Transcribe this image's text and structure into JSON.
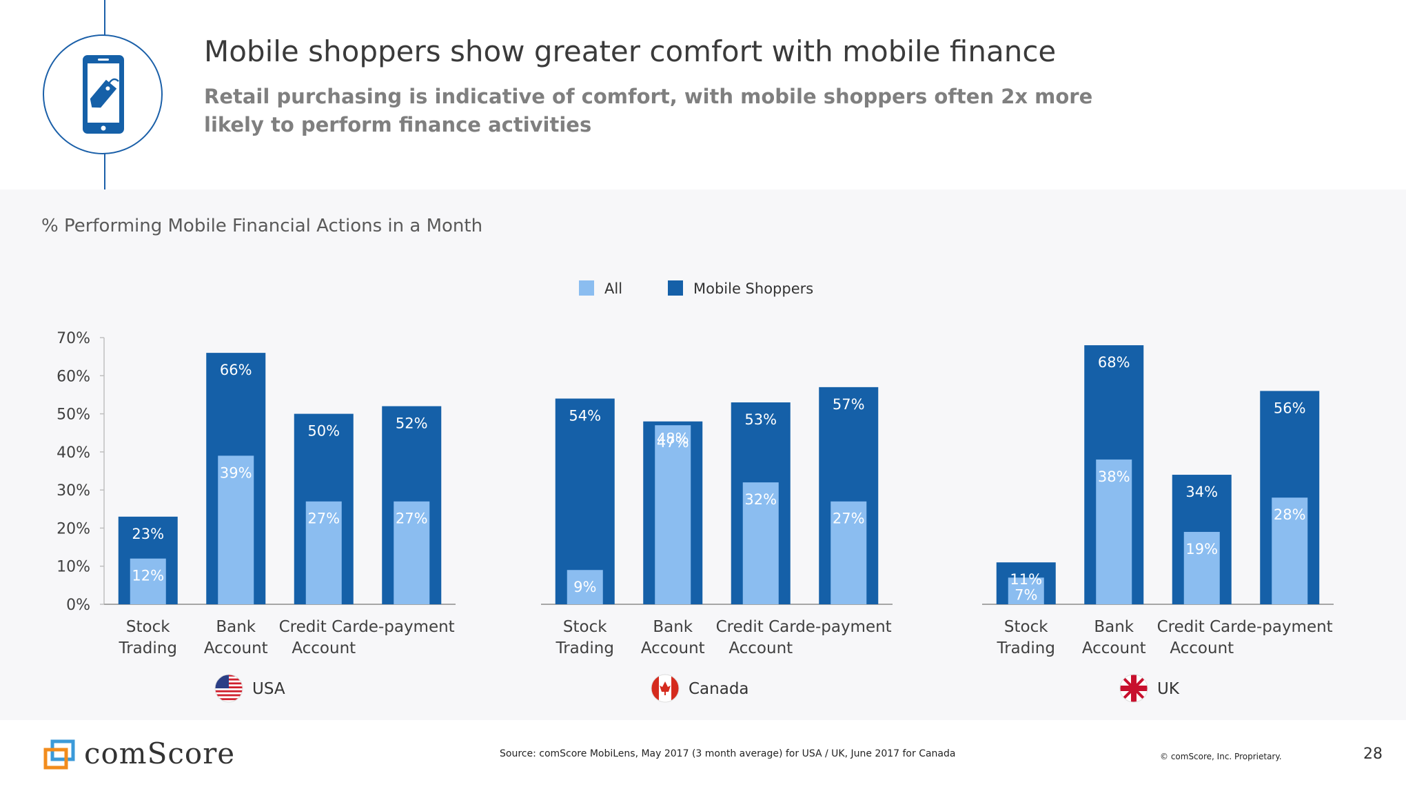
{
  "header": {
    "title": "Mobile shoppers show greater comfort with mobile finance",
    "subtitle": "Retail purchasing is indicative of comfort, with mobile shoppers often 2x more likely to perform finance activities",
    "icon": "mobile-shopping-tag-icon"
  },
  "colors": {
    "all": "#8bbdf0",
    "mobile": "#1560a8",
    "axis": "#7f7f7f"
  },
  "chart_data": {
    "type": "bar",
    "title": "% Performing Mobile Financial Actions in a Month",
    "legend": [
      "All",
      "Mobile Shoppers"
    ],
    "legend_position": "top-center",
    "ylim": [
      0,
      70
    ],
    "yticks": [
      "0%",
      "10%",
      "20%",
      "30%",
      "40%",
      "50%",
      "60%",
      "70%"
    ],
    "ytick_values": [
      0,
      10,
      20,
      30,
      40,
      50,
      60,
      70
    ],
    "groups": [
      {
        "country": "USA",
        "flag": "usa-flag-icon",
        "categories": [
          "Stock\nTrading",
          "Bank\nAccount",
          "Credit Card\nAccount",
          "e-payment"
        ],
        "series": [
          {
            "name": "Mobile Shoppers",
            "values": [
              23,
              66,
              50,
              52
            ],
            "labels": [
              "23%",
              "66%",
              "50%",
              "52%"
            ]
          },
          {
            "name": "All",
            "values": [
              12,
              39,
              27,
              27
            ],
            "labels": [
              "12%",
              "39%",
              "27%",
              "27%"
            ]
          }
        ]
      },
      {
        "country": "Canada",
        "flag": "canada-flag-icon",
        "categories": [
          "Stock\nTrading",
          "Bank\nAccount",
          "Credit Card\nAccount",
          "e-payment"
        ],
        "series": [
          {
            "name": "Mobile Shoppers",
            "values": [
              54,
              48,
              53,
              57
            ],
            "labels": [
              "54%",
              "48%",
              "53%",
              "57%"
            ]
          },
          {
            "name": "All",
            "values": [
              9,
              47,
              32,
              27
            ],
            "labels": [
              "9%",
              "47%",
              "32%",
              "27%"
            ]
          }
        ]
      },
      {
        "country": "UK",
        "flag": "uk-flag-icon",
        "categories": [
          "Stock\nTrading",
          "Bank\nAccount",
          "Credit Card\nAccount",
          "e-payment"
        ],
        "series": [
          {
            "name": "Mobile Shoppers",
            "values": [
              11,
              68,
              34,
              56
            ],
            "labels": [
              "11%",
              "68%",
              "34%",
              "56%"
            ]
          },
          {
            "name": "All",
            "values": [
              7,
              38,
              19,
              28
            ],
            "labels": [
              "7%",
              "38%",
              "19%",
              "28%"
            ]
          }
        ]
      }
    ]
  },
  "footer": {
    "brand": "comScore",
    "source": "Source: comScore MobiLens, May 2017 (3 month average) for USA / UK, June 2017 for Canada",
    "copyright": "© comScore, Inc. Proprietary.",
    "page_number": "28"
  }
}
